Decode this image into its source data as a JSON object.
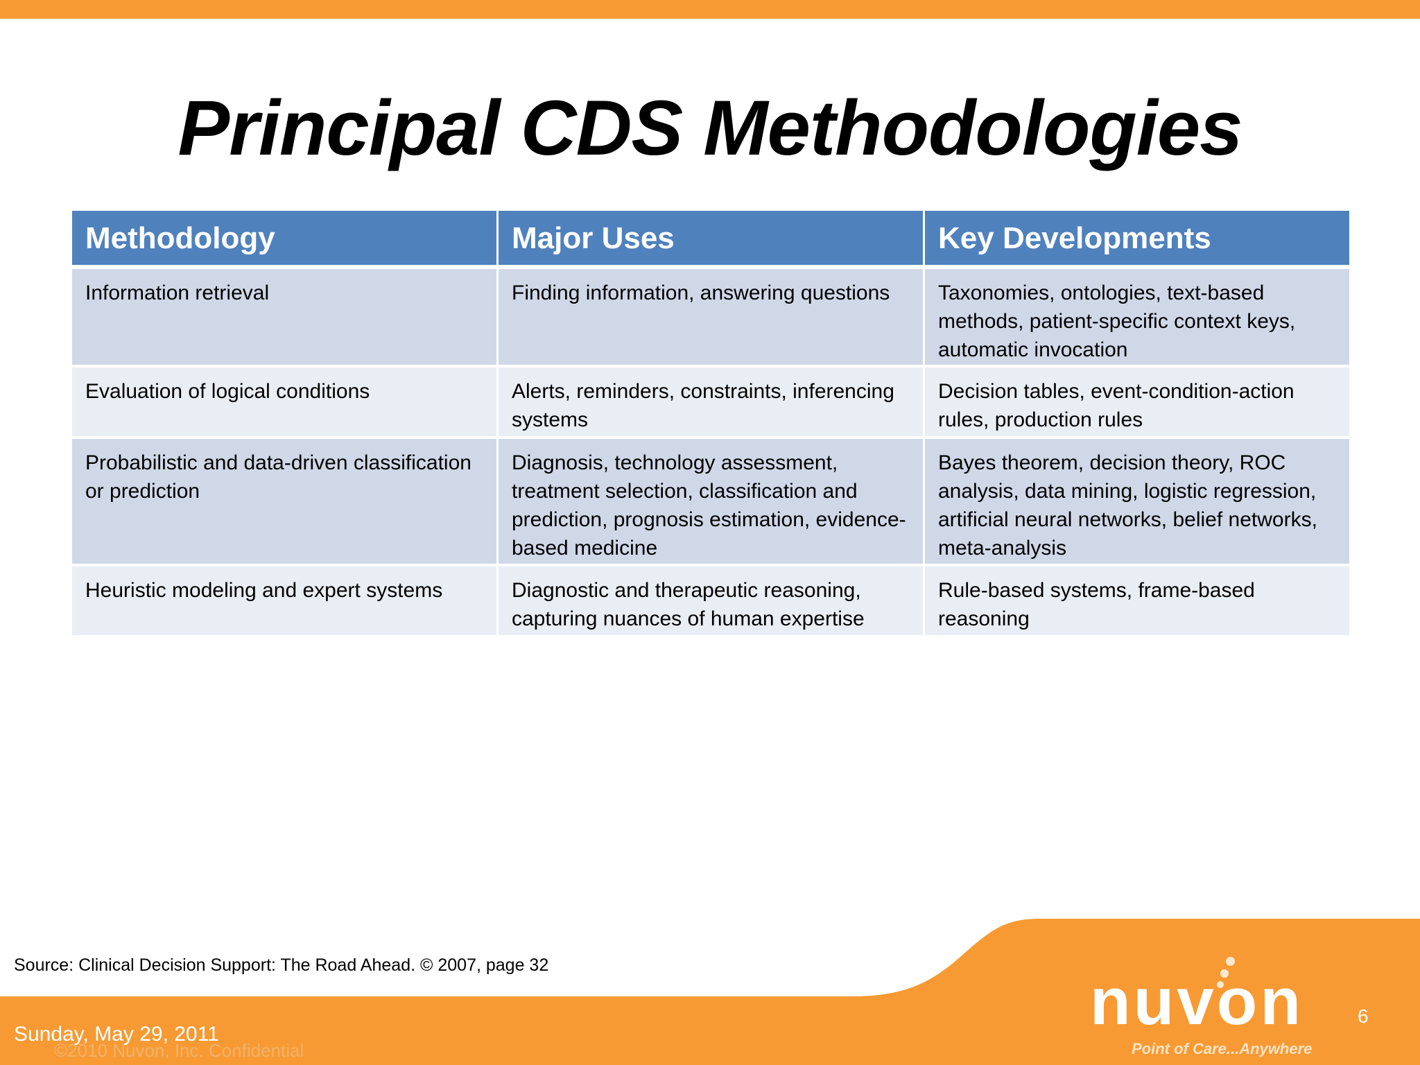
{
  "title": "Principal CDS Methodologies",
  "colors": {
    "accent_orange": "#F79A33",
    "header_blue": "#4F81BD",
    "row_odd": "#D0D8E8",
    "row_even": "#E9EDF4"
  },
  "table": {
    "headers": [
      "Methodology",
      "Major Uses",
      "Key Developments"
    ],
    "rows": [
      [
        "Information retrieval",
        "Finding information, answering questions",
        "Taxonomies, ontologies, text-based methods, patient-specific context keys, automatic invocation"
      ],
      [
        "Evaluation of logical conditions",
        "Alerts, reminders, constraints, inferencing systems",
        "Decision tables, event-condition-action rules, production rules"
      ],
      [
        "Probabilistic and data-driven classification or prediction",
        "Diagnosis, technology assessment, treatment selection, classification and prediction, prognosis estimation, evidence-based medicine",
        "Bayes theorem, decision theory, ROC analysis, data mining, logistic regression, artificial neural networks, belief networks, meta-analysis"
      ],
      [
        "Heuristic modeling and expert systems",
        "Diagnostic and therapeutic reasoning, capturing nuances of human expertise",
        "Rule-based systems, frame-based reasoning"
      ]
    ]
  },
  "footer": {
    "source": "Source: Clinical Decision Support: The Road Ahead. © 2007, page 32",
    "date": "Sunday, May 29, 2011",
    "confidential": "©2010 Nuvon, Inc. Confidential",
    "page_number": "6",
    "logo": {
      "name": "nuvon",
      "tagline": "Point of Care...Anywhere"
    }
  }
}
